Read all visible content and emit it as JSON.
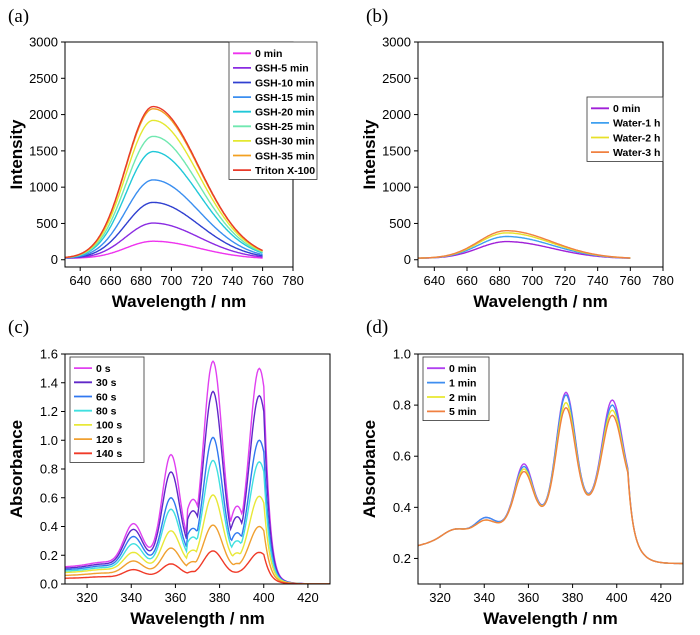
{
  "figure": {
    "description_panels": [
      "(a)",
      "(b)",
      "(c)",
      "(d)"
    ]
  },
  "chart_data": [
    {
      "panel": "(a)",
      "type": "line",
      "xlabel": "Wavelength / nm",
      "ylabel": "Intensity",
      "xlim": [
        630,
        780
      ],
      "ylim": [
        -100,
        3000
      ],
      "xticks": [
        640,
        660,
        680,
        700,
        720,
        740,
        760,
        780
      ],
      "yticks": [
        0,
        500,
        1000,
        1500,
        2000,
        2500,
        3000
      ],
      "legend_position": "top-right",
      "shape": {
        "type": "emission",
        "x_start": 630,
        "x_end": 760,
        "x_base": 630,
        "peak": 688,
        "sigma_left": 18,
        "sigma_right": 30,
        "base_start": 20,
        "base_end": 10
      },
      "series": [
        {
          "name": "0 min",
          "color": "#ee33ee",
          "peak": 255
        },
        {
          "name": "GSH-5 min",
          "color": "#8a2be2",
          "peak": 505
        },
        {
          "name": "GSH-10 min",
          "color": "#3040d0",
          "peak": 790
        },
        {
          "name": "GSH-15 min",
          "color": "#3a8ef0",
          "peak": 1100
        },
        {
          "name": "GSH-20 min",
          "color": "#20c8d8",
          "peak": 1490
        },
        {
          "name": "GSH-25 min",
          "color": "#70e8b0",
          "peak": 1700
        },
        {
          "name": "GSH-30 min",
          "color": "#e4e830",
          "peak": 1920
        },
        {
          "name": "GSH-35 min",
          "color": "#f3a020",
          "peak": 2080
        },
        {
          "name": "Triton X-100",
          "color": "#e83a2a",
          "peak": 2110
        }
      ]
    },
    {
      "panel": "(b)",
      "type": "line",
      "xlabel": "Wavelength / nm",
      "ylabel": "Intensity",
      "xlim": [
        630,
        780
      ],
      "ylim": [
        -100,
        3000
      ],
      "xticks": [
        640,
        660,
        680,
        700,
        720,
        740,
        760,
        780
      ],
      "yticks": [
        0,
        500,
        1000,
        1500,
        2000,
        2500,
        3000
      ],
      "legend_position": "upper-right",
      "shape": {
        "type": "emission",
        "x_start": 630,
        "x_end": 760,
        "x_base": 630,
        "peak": 684,
        "sigma_left": 17,
        "sigma_right": 28,
        "base_start": 20,
        "base_end": 15
      },
      "series": [
        {
          "name": "0 min",
          "color": "#a020d8",
          "peak": 250
        },
        {
          "name": "Water-1 h",
          "color": "#3ea0f0",
          "peak": 320
        },
        {
          "name": "Water-2 h",
          "color": "#e8e028",
          "peak": 370
        },
        {
          "name": "Water-3 h",
          "color": "#f08040",
          "peak": 400
        }
      ]
    },
    {
      "panel": "(c)",
      "type": "line",
      "xlabel": "Wavelength / nm",
      "ylabel": "Absorbance",
      "xlim": [
        310,
        430
      ],
      "ylim": [
        0,
        1.6
      ],
      "xticks": [
        320,
        340,
        360,
        380,
        400,
        420
      ],
      "yticks": [
        0.0,
        0.2,
        0.4,
        0.6,
        0.8,
        1.0,
        1.2,
        1.4,
        1.6
      ],
      "legend_position": "top-left",
      "shape": {
        "type": "absorption",
        "x_start": 310,
        "x_end": 430,
        "x_base": 310,
        "tail_center": 400,
        "tail_decay": 4
      },
      "series": [
        {
          "name": "0 s",
          "color": "#e040f0",
          "base": 0.12,
          "peaks": [
            0.42,
            0.9,
            1.55,
            1.5
          ]
        },
        {
          "name": "30 s",
          "color": "#6028c8",
          "base": 0.11,
          "peaks": [
            0.38,
            0.78,
            1.34,
            1.31
          ]
        },
        {
          "name": "60 s",
          "color": "#3078f0",
          "base": 0.1,
          "peaks": [
            0.33,
            0.6,
            1.02,
            1.0
          ]
        },
        {
          "name": "80 s",
          "color": "#40e0e0",
          "base": 0.09,
          "peaks": [
            0.28,
            0.52,
            0.86,
            0.85
          ]
        },
        {
          "name": "100 s",
          "color": "#e8e838",
          "base": 0.08,
          "peaks": [
            0.22,
            0.37,
            0.62,
            0.61
          ]
        },
        {
          "name": "120 s",
          "color": "#f0a030",
          "base": 0.06,
          "peaks": [
            0.16,
            0.25,
            0.41,
            0.4
          ]
        },
        {
          "name": "140 s",
          "color": "#f03a28",
          "base": 0.04,
          "peaks": [
            0.1,
            0.14,
            0.23,
            0.22
          ]
        }
      ]
    },
    {
      "panel": "(d)",
      "type": "line",
      "xlabel": "Wavelength / nm",
      "ylabel": "Absorbance",
      "xlim": [
        310,
        430
      ],
      "ylim": [
        0.1,
        1.0
      ],
      "xticks": [
        320,
        340,
        360,
        380,
        400,
        420
      ],
      "yticks": [
        0.2,
        0.4,
        0.6,
        0.8,
        1.0
      ],
      "legend_position": "top-left",
      "shape": {
        "type": "absorption",
        "x_start": 310,
        "x_end": 430,
        "x_base": 310,
        "tail_center": 405,
        "tail_decay": 3.5,
        "floor": 0.18
      },
      "series": [
        {
          "name": "0 min",
          "color": "#b040f0",
          "base": 0.25,
          "peaks": [
            0.36,
            0.57,
            0.85,
            0.82
          ]
        },
        {
          "name": "1 min",
          "color": "#3e8ef0",
          "base": 0.25,
          "peaks": [
            0.36,
            0.56,
            0.84,
            0.8
          ]
        },
        {
          "name": "2 min",
          "color": "#e8e830",
          "base": 0.25,
          "peaks": [
            0.35,
            0.55,
            0.81,
            0.78
          ]
        },
        {
          "name": "5 min",
          "color": "#f08040",
          "base": 0.25,
          "peaks": [
            0.35,
            0.54,
            0.79,
            0.76
          ]
        }
      ]
    }
  ]
}
